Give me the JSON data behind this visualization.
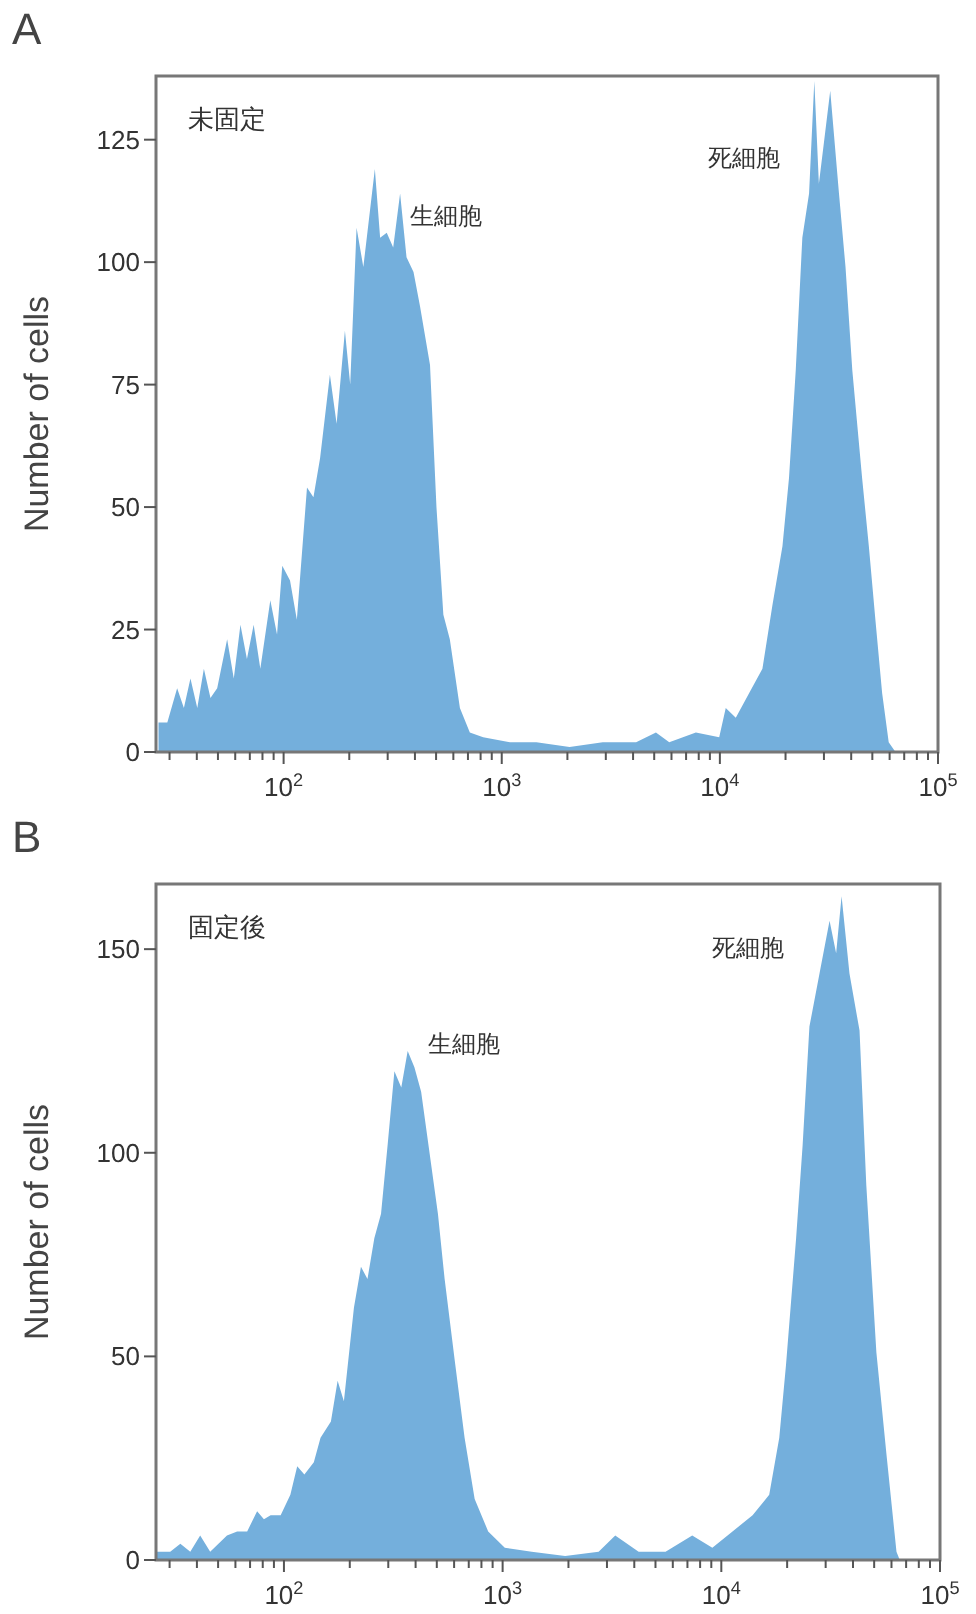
{
  "chart_data": [
    {
      "type": "area",
      "title": "A",
      "ylabel": "Number of cells",
      "log": "x",
      "color": "#74afdc",
      "x": [
        26.7,
        29.3,
        32.5,
        34.9,
        37.4,
        40.2,
        43.1,
        46.2,
        49.6,
        55.1,
        59.1,
        63.4,
        67.9,
        72.9,
        78.2,
        86.9,
        93.3,
        98.6,
        107,
        115,
        128,
        137,
        147,
        163,
        175,
        191,
        202,
        216,
        232,
        262,
        277,
        297,
        318,
        342,
        366,
        394,
        422,
        469,
        502,
        540,
        578,
        643,
        714,
        822,
        1089,
        1442,
        2046,
        2904,
        4130,
        5093,
        5861,
        7762,
        9931,
        10640,
        11830,
        13610,
        15670,
        17420,
        19360,
        20750,
        22280,
        23880,
        25640,
        27100,
        28440,
        29920,
        32060,
        35160,
        37670,
        40460,
        44870,
        48190,
        51640,
        55460,
        59430,
        63830
      ],
      "values": [
        6,
        6,
        13,
        9,
        15,
        9,
        17,
        11,
        13,
        23,
        15,
        26,
        19,
        26,
        17,
        31,
        24,
        38,
        35,
        27,
        54,
        52,
        60,
        77,
        67,
        86,
        75,
        107,
        99,
        119,
        105,
        106,
        103,
        114,
        101,
        98,
        91,
        79,
        50,
        28,
        23,
        9,
        4,
        3,
        2,
        2,
        1,
        2,
        2,
        4,
        2,
        4,
        3,
        9,
        7,
        12,
        17,
        30,
        42,
        56,
        78,
        105,
        114,
        137,
        116,
        124,
        135,
        114,
        99,
        78,
        56,
        42,
        27,
        12,
        2,
        0
      ],
      "xlim": [
        26,
        100000
      ],
      "ylim": [
        0,
        138
      ],
      "xticks": [
        {
          "value": 30,
          "label": null
        },
        {
          "value": 40,
          "label": null
        },
        {
          "value": 50,
          "label": null
        },
        {
          "value": 60,
          "label": null
        },
        {
          "value": 70,
          "label": null
        },
        {
          "value": 80,
          "label": null
        },
        {
          "value": 90,
          "label": null
        },
        {
          "value": 100,
          "label": "10$^{2}$"
        },
        {
          "value": 200,
          "label": null
        },
        {
          "value": 300,
          "label": null
        },
        {
          "value": 400,
          "label": null
        },
        {
          "value": 500,
          "label": null
        },
        {
          "value": 600,
          "label": null
        },
        {
          "value": 700,
          "label": null
        },
        {
          "value": 800,
          "label": null
        },
        {
          "value": 900,
          "label": null
        },
        {
          "value": 1000,
          "label": "10$^{3}$"
        },
        {
          "value": 2000,
          "label": null
        },
        {
          "value": 3000,
          "label": null
        },
        {
          "value": 4000,
          "label": null
        },
        {
          "value": 5000,
          "label": null
        },
        {
          "value": 6000,
          "label": null
        },
        {
          "value": 7000,
          "label": null
        },
        {
          "value": 8000,
          "label": null
        },
        {
          "value": 9000,
          "label": null
        },
        {
          "value": 10000,
          "label": "10$^{4}$"
        },
        {
          "value": 20000,
          "label": null
        },
        {
          "value": 30000,
          "label": null
        },
        {
          "value": 40000,
          "label": null
        },
        {
          "value": 50000,
          "label": null
        },
        {
          "value": 60000,
          "label": null
        },
        {
          "value": 70000,
          "label": null
        },
        {
          "value": 80000,
          "label": null
        },
        {
          "value": 90000,
          "label": null
        },
        {
          "value": 100000,
          "label": "10$^{5}$"
        }
      ],
      "yticks": [
        0,
        25,
        50,
        75,
        100,
        125
      ],
      "annotations": [
        "未固定",
        "生細胞",
        "死細胞"
      ]
    },
    {
      "type": "area",
      "title": "B",
      "ylabel": "Number of cells",
      "log": "x",
      "color": "#74afdc",
      "x": [
        26.2,
        30.2,
        33.6,
        37.3,
        41.4,
        46.0,
        54.9,
        61.1,
        67.9,
        75.4,
        81.0,
        86.9,
        96.6,
        107,
        115,
        124,
        137,
        147,
        164,
        176,
        188,
        209,
        225,
        241,
        259,
        278,
        298,
        320,
        344,
        368,
        395,
        424,
        455,
        506,
        543,
        604,
        670,
        745,
        859,
        1023,
        1358,
        1932,
        2748,
        3273,
        4188,
        5559,
        7362,
        9099,
        11250,
        13900,
        16560,
        18410,
        19770,
        21980,
        23550,
        25290,
        28120,
        31260,
        33500,
        35480,
        38550,
        42860,
        46030,
        51170,
        56890,
        63240,
        65460
      ],
      "values": [
        2,
        2,
        4,
        2,
        6,
        2,
        6,
        7,
        7,
        12,
        10,
        11,
        11,
        16,
        23,
        21,
        24,
        30,
        34,
        44,
        39,
        62,
        72,
        69,
        79,
        85,
        102,
        120,
        116,
        125,
        121,
        115,
        103,
        85,
        69,
        49,
        30,
        15,
        7,
        3,
        2,
        1,
        2,
        6,
        2,
        2,
        6,
        3,
        7,
        11,
        16,
        30,
        48,
        79,
        102,
        131,
        144,
        157,
        149,
        163,
        144,
        130,
        92,
        51,
        26,
        2,
        0
      ],
      "xlim": [
        26,
        100000
      ],
      "ylim": [
        0,
        166
      ],
      "xticks": [
        {
          "value": 30,
          "label": null
        },
        {
          "value": 40,
          "label": null
        },
        {
          "value": 50,
          "label": null
        },
        {
          "value": 60,
          "label": null
        },
        {
          "value": 70,
          "label": null
        },
        {
          "value": 80,
          "label": null
        },
        {
          "value": 90,
          "label": null
        },
        {
          "value": 100,
          "label": "10$^{2}$"
        },
        {
          "value": 200,
          "label": null
        },
        {
          "value": 300,
          "label": null
        },
        {
          "value": 400,
          "label": null
        },
        {
          "value": 500,
          "label": null
        },
        {
          "value": 600,
          "label": null
        },
        {
          "value": 700,
          "label": null
        },
        {
          "value": 800,
          "label": null
        },
        {
          "value": 900,
          "label": null
        },
        {
          "value": 1000,
          "label": "10$^{3}$"
        },
        {
          "value": 2000,
          "label": null
        },
        {
          "value": 3000,
          "label": null
        },
        {
          "value": 4000,
          "label": null
        },
        {
          "value": 5000,
          "label": null
        },
        {
          "value": 6000,
          "label": null
        },
        {
          "value": 7000,
          "label": null
        },
        {
          "value": 8000,
          "label": null
        },
        {
          "value": 9000,
          "label": null
        },
        {
          "value": 10000,
          "label": "10$^{4}$"
        },
        {
          "value": 20000,
          "label": null
        },
        {
          "value": 30000,
          "label": null
        },
        {
          "value": 40000,
          "label": null
        },
        {
          "value": 50000,
          "label": null
        },
        {
          "value": 60000,
          "label": null
        },
        {
          "value": 70000,
          "label": null
        },
        {
          "value": 80000,
          "label": null
        },
        {
          "value": 90000,
          "label": null
        },
        {
          "value": 100000,
          "label": "10$^{5}$"
        }
      ],
      "yticks": [
        0,
        50,
        100,
        150
      ],
      "annotations": [
        "固定後",
        "生細胞",
        "死細胞"
      ]
    }
  ]
}
